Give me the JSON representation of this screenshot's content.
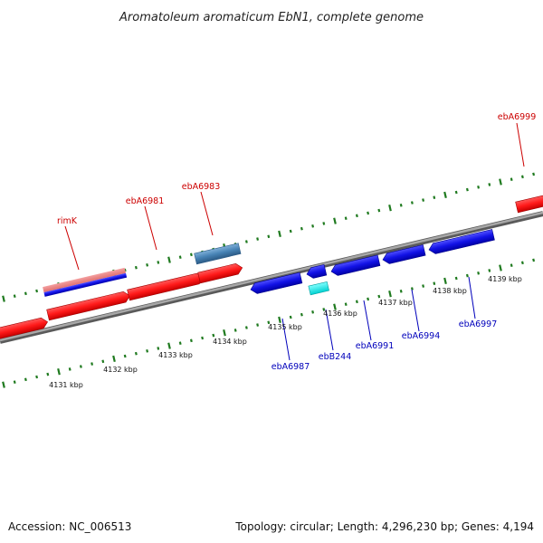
{
  "title": "Aromatoleum aromaticum EbN1, complete genome",
  "footer": {
    "accession": "Accession: NC_006513",
    "summary": "Topology: circular; Length: 4,296,230 bp; Genes: 4,194"
  },
  "colors": {
    "background": "#ffffff",
    "backbone": "#8a8a8a",
    "tick_dots": "#1f7a1f",
    "forward_gene": "#ff1a1a",
    "reverse_gene": "#1212e6",
    "rna_gene": "#4682b4",
    "cyan_feature": "#00f0f0",
    "forward_label": "#cc0000",
    "reverse_label": "#0000bb"
  },
  "scale_labels": [
    "4131 kbp",
    "4132 kbp",
    "4133 kbp",
    "4134 kbp",
    "4135 kbp",
    "4136 kbp",
    "4137 kbp",
    "4138 kbp",
    "4139 kbp"
  ],
  "forward_labels": [
    "rimK",
    "ebA6981",
    "ebA6983",
    "ebA6999"
  ],
  "reverse_labels": [
    "ebA6987",
    "ebB244",
    "ebA6991",
    "ebA6994",
    "ebA6997"
  ]
}
